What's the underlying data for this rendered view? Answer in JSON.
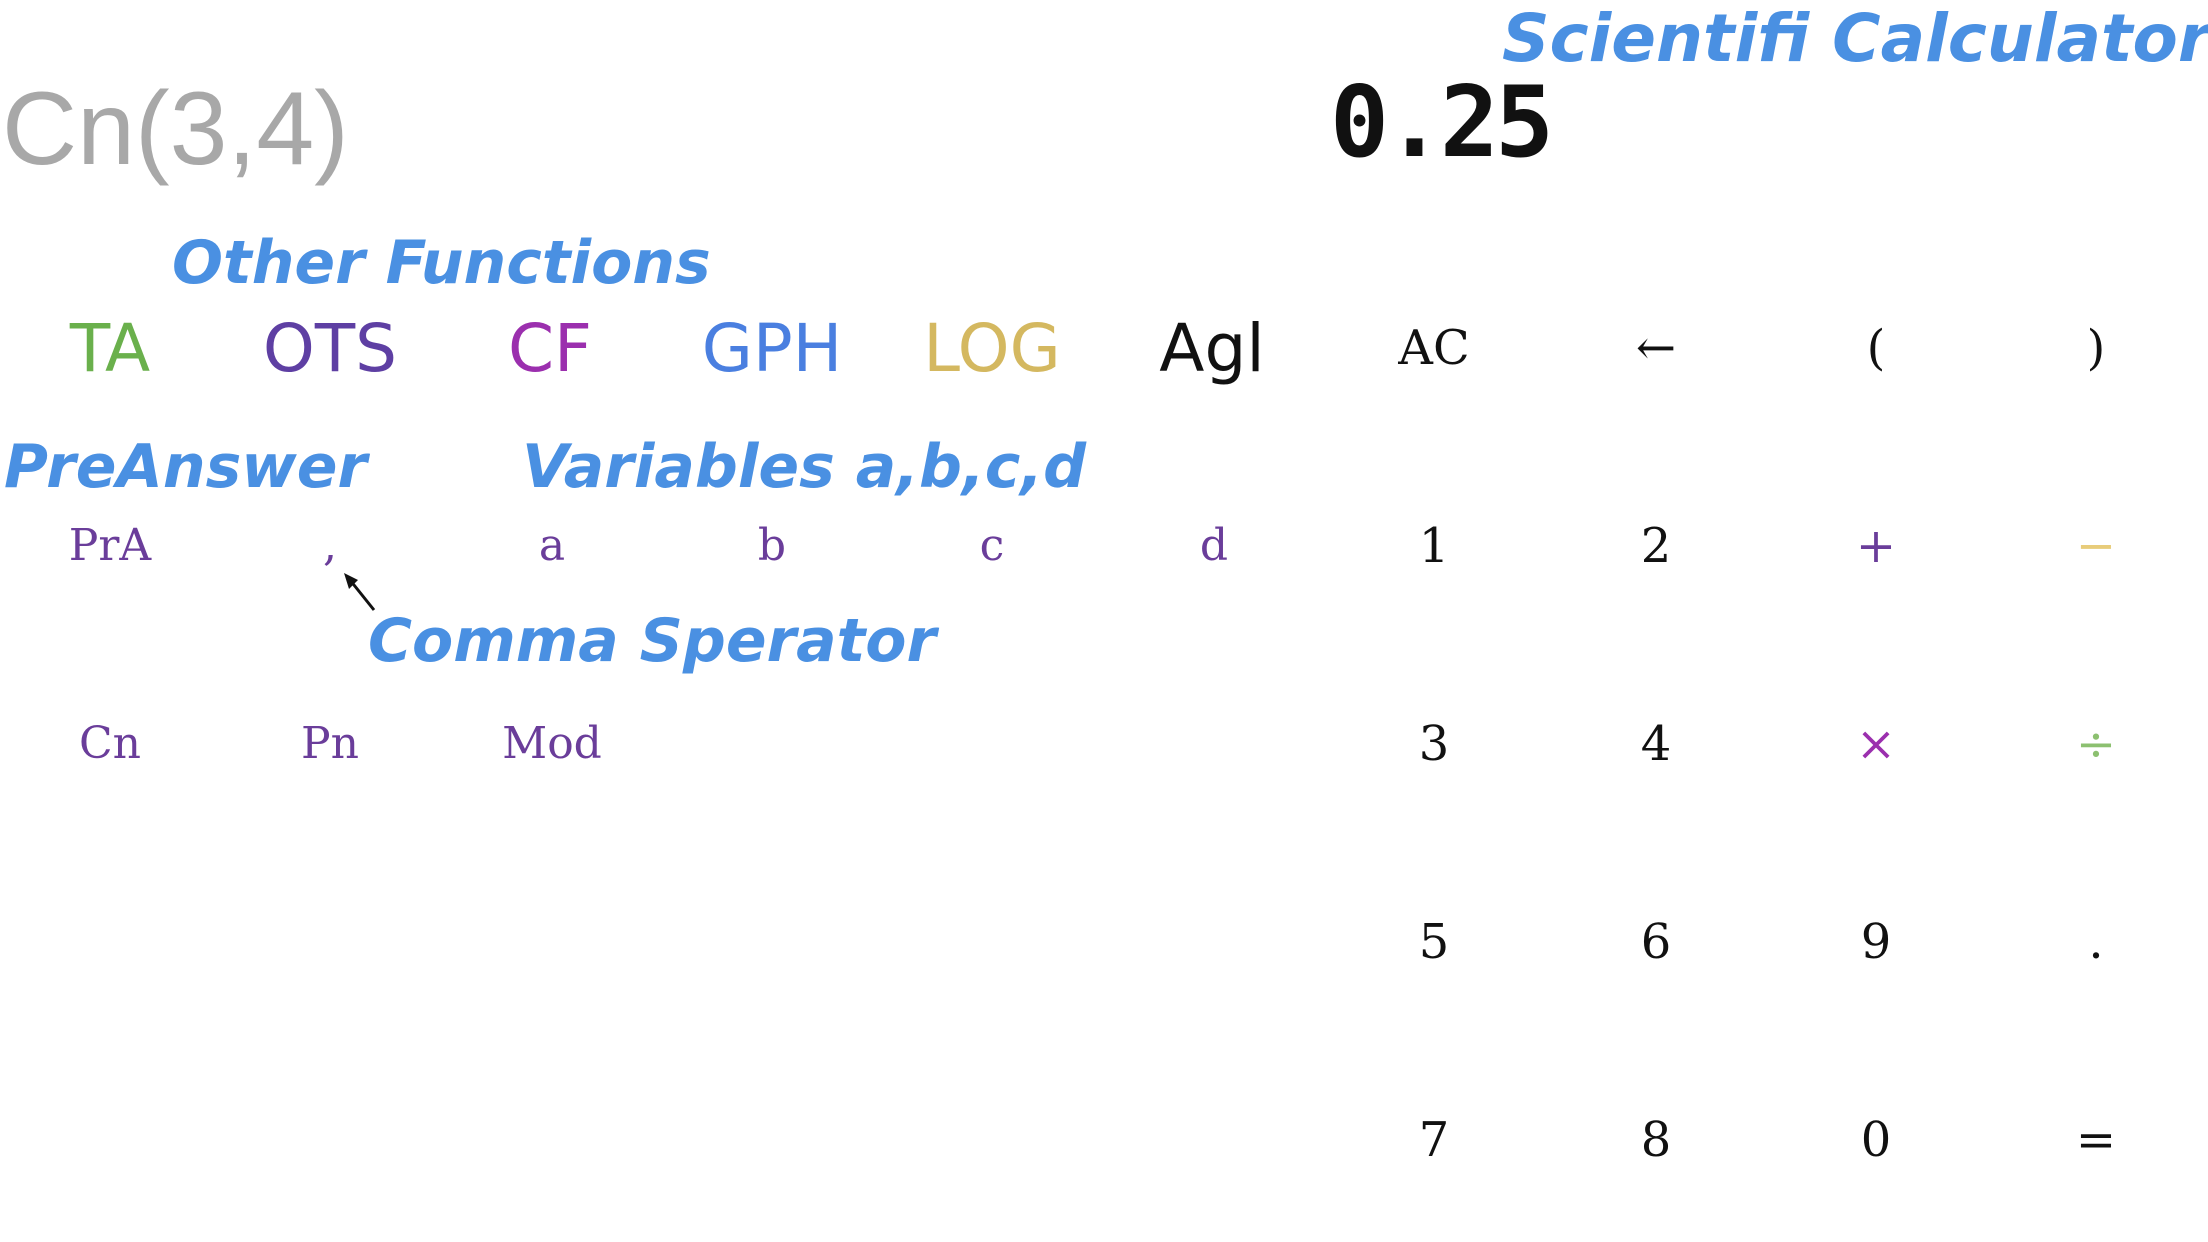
{
  "annotations": {
    "title": "Scientifi Calculator",
    "other_functions": "Other Functions",
    "preanswer": "PreAnswer",
    "variables": "Variables a,b,c,d",
    "comma_separator": "Comma Sperator"
  },
  "display": {
    "expression": "Cn(3,4)",
    "result": "0.25"
  },
  "functions": [
    {
      "label": "TA",
      "color": "#6ab04c"
    },
    {
      "label": "OTS",
      "color": "#5e3fa3"
    },
    {
      "label": "CF",
      "color": "#9b2fae"
    },
    {
      "label": "GPH",
      "color": "#4a7fe0"
    },
    {
      "label": "LOG",
      "color": "#d4b860"
    },
    {
      "label": "Agl",
      "color": "#111111"
    }
  ],
  "left_keys": {
    "row1": [
      "PrA",
      ",",
      "a",
      "b",
      "c",
      "d"
    ],
    "row2": [
      "Cn",
      "Pn",
      "Mod"
    ]
  },
  "keypad": {
    "row1": [
      "AC",
      "←",
      "(",
      ")"
    ],
    "row2": [
      "1",
      "2",
      "+",
      "−"
    ],
    "row3": [
      "3",
      "4",
      "×",
      "÷"
    ],
    "row4": [
      "5",
      "6",
      "9",
      "."
    ],
    "row5": [
      "7",
      "8",
      "0",
      "="
    ]
  },
  "colors": {
    "plus": "#6a3d9a",
    "minus": "#e8cc7a",
    "times": "#9b2fae",
    "divide": "#8cc070",
    "annotation": "#4a90e2"
  }
}
